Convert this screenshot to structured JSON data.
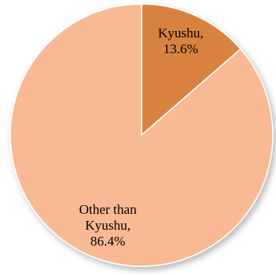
{
  "chart_data": {
    "type": "pie",
    "title": "",
    "legend": "none",
    "start_angle_deg": 0,
    "direction": "clockwise",
    "slices": [
      {
        "name": "Kyushu",
        "value": 13.6,
        "label_lines": [
          "Kyushu,",
          "13.6%"
        ],
        "color": "#d9823f"
      },
      {
        "name": "Other than Kyushu",
        "value": 86.4,
        "label_lines": [
          "Other than",
          "Kyushu,",
          "86.4%"
        ],
        "color": "#f8b994"
      }
    ]
  }
}
